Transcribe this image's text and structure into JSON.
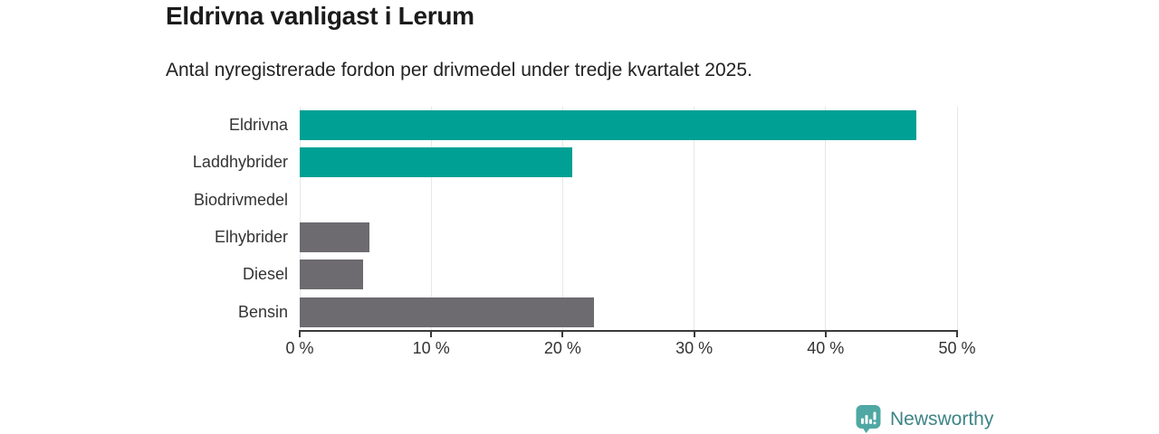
{
  "title": "Eldrivna vanligast i Lerum",
  "subtitle": "Antal nyregistrerade fordon per drivmedel under tredje kvartalet 2025.",
  "chart_data": {
    "type": "bar",
    "orientation": "horizontal",
    "title": "Eldrivna vanligast i Lerum",
    "subtitle": "Antal nyregistrerade fordon per drivmedel under tredje kvartalet 2025.",
    "categories": [
      "Eldrivna",
      "Laddhybrider",
      "Biodrivmedel",
      "Elhybrider",
      "Diesel",
      "Bensin"
    ],
    "values": [
      46.9,
      20.7,
      0,
      5.3,
      4.8,
      22.4
    ],
    "unit": "%",
    "xlim": [
      0,
      50
    ],
    "x_tick_values": [
      0,
      10,
      20,
      30,
      40,
      50
    ],
    "x_tick_labels": [
      "0 %",
      "10 %",
      "20 %",
      "30 %",
      "40 %",
      "50 %"
    ],
    "bar_colors": [
      "#00a095",
      "#00a095",
      "#6d6a70",
      "#6d6a70",
      "#6d6a70",
      "#6d6a70"
    ],
    "grid": "vertical-gridlines-on",
    "legend": "none"
  },
  "colors": {
    "teal": "#00a095",
    "gray": "#6d6a70",
    "axis": "#3a3a3a",
    "gridline": "#e7e7e7",
    "title_text": "#1b1b1b",
    "body_text": "#333333",
    "logo_icon": "#4fa8a3",
    "logo_text": "#3d8486"
  },
  "branding": {
    "logo_text": "Newsworthy",
    "logo_icon": "bar-chart-pin-icon"
  }
}
